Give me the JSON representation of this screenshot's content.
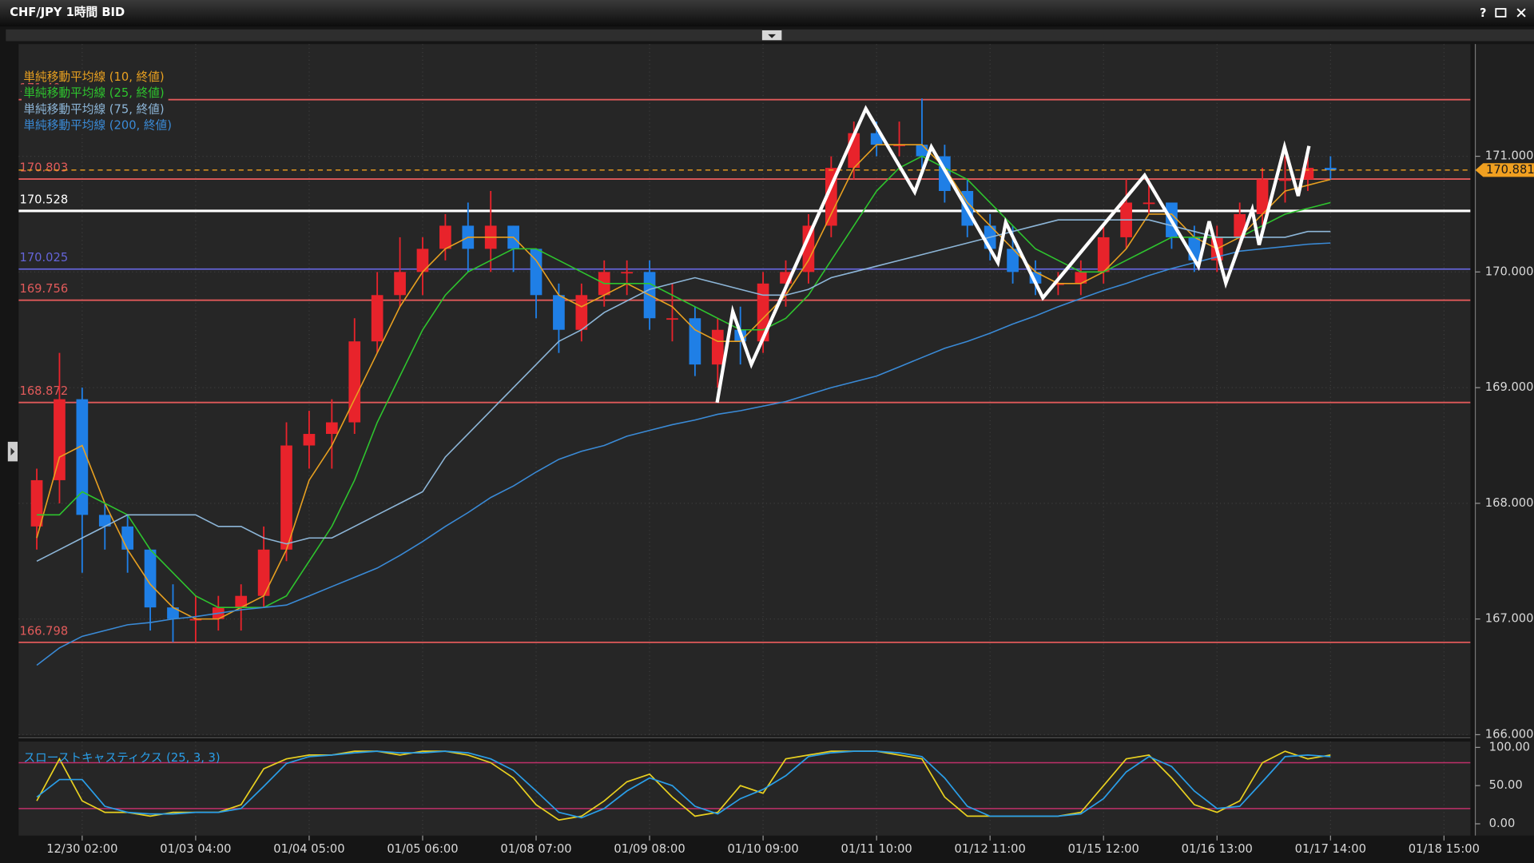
{
  "window": {
    "title": "CHF/JPY 1時間 BID",
    "help": "?"
  },
  "chart_data": [
    {
      "type": "candlestick",
      "categories": [
        null,
        null,
        "12/30 02:00",
        null,
        null,
        null,
        null,
        "01/03 04:00",
        null,
        null,
        null,
        null,
        "01/04 05:00",
        null,
        null,
        null,
        null,
        "01/05 06:00",
        null,
        null,
        null,
        null,
        "01/08 07:00",
        null,
        null,
        null,
        null,
        "01/09 08:00",
        null,
        null,
        null,
        null,
        "01/10 09:00",
        null,
        null,
        null,
        null,
        "01/11 10:00",
        null,
        null,
        null,
        null,
        "01/12 11:00",
        null,
        null,
        null,
        null,
        "01/15 12:00",
        null,
        null,
        null,
        null,
        "01/16 13:00",
        null,
        null,
        null,
        null,
        "01/17 14:00",
        null,
        null,
        null,
        null,
        "01/18 15:00"
      ],
      "open": [
        167.8,
        168.2,
        168.9,
        167.9,
        167.8,
        167.6,
        167.1,
        167.0,
        167.0,
        167.1,
        167.2,
        167.6,
        168.5,
        168.6,
        168.7,
        169.4,
        169.8,
        170.0,
        170.2,
        170.4,
        170.2,
        170.4,
        170.2,
        169.8,
        169.5,
        169.8,
        170.0,
        170.0,
        169.6,
        169.6,
        169.2,
        169.5,
        169.4,
        169.9,
        170.0,
        170.4,
        170.9,
        171.2,
        171.1,
        171.1,
        171.0,
        170.7,
        170.4,
        170.2,
        170.0,
        169.9,
        169.9,
        170.0,
        170.3,
        170.6,
        170.6,
        170.3,
        170.1,
        170.3,
        170.5,
        170.8,
        170.8,
        170.9,
        null,
        null,
        null,
        null,
        null
      ],
      "high": [
        168.3,
        169.3,
        169.0,
        168.0,
        167.9,
        167.6,
        167.3,
        167.2,
        167.2,
        167.3,
        167.8,
        168.7,
        168.8,
        168.9,
        169.6,
        170.0,
        170.3,
        170.3,
        170.5,
        170.6,
        170.7,
        170.4,
        170.2,
        169.9,
        169.9,
        170.1,
        170.1,
        170.1,
        169.9,
        169.7,
        169.6,
        169.7,
        170.0,
        170.1,
        170.5,
        171.0,
        171.3,
        171.3,
        171.3,
        171.5,
        171.1,
        170.8,
        170.5,
        170.4,
        170.1,
        170.0,
        170.1,
        170.4,
        170.8,
        170.8,
        170.6,
        170.4,
        170.4,
        170.6,
        170.9,
        171.0,
        171.0,
        171.0,
        null,
        null,
        null,
        null,
        null
      ],
      "low": [
        167.6,
        168.0,
        167.4,
        167.6,
        167.4,
        166.9,
        166.8,
        166.8,
        166.9,
        166.9,
        167.1,
        167.5,
        168.3,
        168.3,
        168.6,
        169.3,
        169.7,
        169.8,
        170.1,
        170.0,
        170.0,
        170.0,
        169.6,
        169.3,
        169.4,
        169.7,
        169.8,
        169.5,
        169.4,
        169.1,
        169.0,
        169.2,
        169.3,
        169.7,
        169.9,
        170.3,
        170.8,
        171.0,
        171.0,
        170.9,
        170.6,
        170.3,
        170.1,
        169.9,
        169.8,
        169.8,
        169.8,
        169.9,
        170.2,
        170.5,
        170.2,
        170.0,
        170.0,
        170.2,
        170.4,
        170.6,
        170.7,
        170.8,
        null,
        null,
        null,
        null,
        null
      ],
      "close": [
        168.2,
        168.9,
        167.9,
        167.8,
        167.6,
        167.1,
        167.0,
        167.0,
        167.1,
        167.2,
        167.6,
        168.5,
        168.6,
        168.7,
        169.4,
        169.8,
        170.0,
        170.2,
        170.4,
        170.2,
        170.4,
        170.2,
        169.8,
        169.5,
        169.8,
        170.0,
        170.0,
        169.6,
        169.6,
        169.2,
        169.5,
        169.4,
        169.9,
        170.0,
        170.4,
        170.9,
        171.2,
        171.1,
        171.1,
        171.0,
        170.7,
        170.4,
        170.2,
        170.0,
        169.9,
        169.9,
        170.0,
        170.3,
        170.6,
        170.6,
        170.3,
        170.1,
        170.3,
        170.5,
        170.8,
        170.8,
        170.9,
        170.88,
        null,
        null,
        null,
        null,
        null
      ],
      "up_color": "#e8232b",
      "down_color": "#1f7fe6",
      "series": [
        {
          "name": "単純移動平均線 (10, 終値)",
          "color": "#e8a020",
          "values": [
            167.7,
            168.4,
            168.5,
            168.0,
            167.6,
            167.3,
            167.1,
            167.0,
            167.0,
            167.1,
            167.2,
            167.6,
            168.2,
            168.5,
            168.9,
            169.3,
            169.7,
            170.0,
            170.2,
            170.3,
            170.3,
            170.3,
            170.1,
            169.8,
            169.7,
            169.8,
            169.9,
            169.8,
            169.7,
            169.5,
            169.4,
            169.4,
            169.6,
            169.8,
            170.1,
            170.5,
            170.9,
            171.1,
            171.1,
            171.1,
            170.9,
            170.6,
            170.4,
            170.2,
            170.0,
            169.9,
            169.9,
            170.0,
            170.2,
            170.5,
            170.5,
            170.3,
            170.2,
            170.3,
            170.5,
            170.7,
            170.75,
            170.8,
            null,
            null,
            null,
            null,
            null
          ]
        },
        {
          "name": "単純移動平均線 (25, 終値)",
          "color": "#2ec42e",
          "values": [
            167.9,
            167.9,
            168.1,
            168.0,
            167.9,
            167.6,
            167.4,
            167.2,
            167.1,
            167.1,
            167.1,
            167.2,
            167.5,
            167.8,
            168.2,
            168.7,
            169.1,
            169.5,
            169.8,
            170.0,
            170.1,
            170.2,
            170.2,
            170.1,
            170.0,
            169.9,
            169.9,
            169.9,
            169.8,
            169.7,
            169.6,
            169.5,
            169.5,
            169.6,
            169.8,
            170.1,
            170.4,
            170.7,
            170.9,
            171.0,
            170.9,
            170.8,
            170.6,
            170.4,
            170.2,
            170.1,
            170.0,
            170.0,
            170.1,
            170.2,
            170.3,
            170.3,
            170.3,
            170.3,
            170.4,
            170.5,
            170.55,
            170.6,
            null,
            null,
            null,
            null,
            null
          ]
        },
        {
          "name": "単純移動平均線 (75, 終値)",
          "color": "#8db6d8",
          "values": [
            167.5,
            167.6,
            167.7,
            167.8,
            167.9,
            167.9,
            167.9,
            167.9,
            167.8,
            167.8,
            167.7,
            167.65,
            167.7,
            167.7,
            167.8,
            167.9,
            168.0,
            168.1,
            168.4,
            168.6,
            168.8,
            169.0,
            169.2,
            169.4,
            169.5,
            169.65,
            169.75,
            169.85,
            169.9,
            169.95,
            169.9,
            169.85,
            169.8,
            169.8,
            169.85,
            169.95,
            170.0,
            170.05,
            170.1,
            170.15,
            170.2,
            170.25,
            170.3,
            170.35,
            170.4,
            170.45,
            170.45,
            170.45,
            170.45,
            170.45,
            170.4,
            170.35,
            170.3,
            170.3,
            170.3,
            170.3,
            170.35,
            170.35,
            null,
            null,
            null,
            null,
            null
          ]
        },
        {
          "name": "単純移動平均線 (200, 終値)",
          "color": "#3a8ad6",
          "values": [
            166.6,
            166.75,
            166.85,
            166.9,
            166.95,
            166.97,
            167.0,
            167.02,
            167.05,
            167.08,
            167.1,
            167.12,
            167.2,
            167.28,
            167.36,
            167.44,
            167.55,
            167.67,
            167.8,
            167.92,
            168.05,
            168.15,
            168.27,
            168.38,
            168.45,
            168.5,
            168.58,
            168.63,
            168.68,
            168.72,
            168.77,
            168.8,
            168.84,
            168.88,
            168.94,
            169.0,
            169.05,
            169.1,
            169.18,
            169.26,
            169.34,
            169.4,
            169.47,
            169.55,
            169.62,
            169.7,
            169.77,
            169.84,
            169.9,
            169.97,
            170.03,
            170.08,
            170.13,
            170.18,
            170.2,
            170.22,
            170.24,
            170.25,
            null,
            null,
            null,
            null,
            null
          ]
        }
      ],
      "levels": [
        {
          "value": 171.49,
          "color": "#e05a5a"
        },
        {
          "value": 170.803,
          "color": "#e05a5a"
        },
        {
          "value": 170.528,
          "color": "#ffffff"
        },
        {
          "value": 170.025,
          "color": "#6464d8"
        },
        {
          "value": 169.756,
          "color": "#e05a5a"
        },
        {
          "value": 168.872,
          "color": "#e05a5a"
        },
        {
          "value": 166.798,
          "color": "#e05a5a"
        }
      ],
      "current_price": 170.881,
      "current_price_color": "#f0a020",
      "ylim": [
        166,
        171.97
      ],
      "yticks": [
        {
          "value": 166,
          "label": "166.000"
        },
        {
          "value": 167,
          "label": "167.000"
        },
        {
          "value": 168,
          "label": "168.000"
        },
        {
          "value": 169,
          "label": "169.000"
        },
        {
          "value": 170,
          "label": "170.000"
        },
        {
          "value": 171,
          "label": "171.000"
        }
      ],
      "grid": true
    },
    {
      "type": "line",
      "title": "スローストキャスティクス (25, 3, 3)",
      "series": [
        {
          "color": "#e8d020",
          "values": [
            30,
            85,
            30,
            15,
            15,
            10,
            15,
            15,
            15,
            25,
            72,
            85,
            90,
            90,
            95,
            95,
            90,
            95,
            95,
            90,
            80,
            60,
            25,
            5,
            10,
            30,
            55,
            65,
            35,
            10,
            15,
            50,
            40,
            85,
            90,
            95,
            95,
            95,
            90,
            85,
            35,
            10,
            10,
            10,
            10,
            10,
            15,
            50,
            85,
            90,
            60,
            25,
            15,
            30,
            80,
            95,
            85,
            90
          ]
        },
        {
          "color": "#2a9ee8",
          "values": [
            35,
            58,
            58,
            23,
            15,
            13,
            13,
            15,
            15,
            20,
            49,
            79,
            88,
            90,
            93,
            95,
            93,
            93,
            95,
            93,
            85,
            70,
            43,
            15,
            8,
            20,
            43,
            60,
            50,
            23,
            13,
            33,
            45,
            63,
            88,
            93,
            95,
            95,
            93,
            88,
            60,
            23,
            10,
            10,
            10,
            10,
            13,
            33,
            68,
            88,
            75,
            43,
            20,
            23,
            55,
            88,
            90,
            88
          ]
        }
      ],
      "levels": [
        {
          "value": 80,
          "color": "#c0306a"
        },
        {
          "value": 20,
          "color": "#c0306a"
        }
      ],
      "ylim": [
        0,
        100
      ],
      "yticks": [
        {
          "value": 0,
          "label": "0.00"
        },
        {
          "value": 50,
          "label": "50.00"
        },
        {
          "value": 100,
          "label": "100.00"
        }
      ]
    }
  ]
}
